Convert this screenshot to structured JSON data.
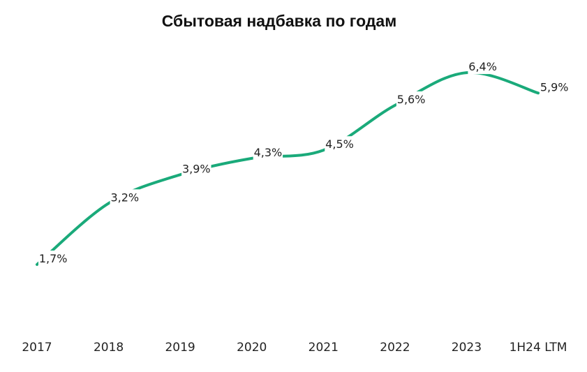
{
  "chart_data": {
    "type": "line",
    "title": "Сбытовая надбавка по годам",
    "categories": [
      "2017",
      "2018",
      "2019",
      "2020",
      "2021",
      "2022",
      "2023",
      "1H24 LTM"
    ],
    "series": [
      {
        "values": [
          1.7,
          3.2,
          3.9,
          4.3,
          4.5,
          5.6,
          6.4,
          5.9
        ]
      }
    ],
    "data_labels": [
      "1,7%",
      "3,2%",
      "3,9%",
      "4,3%",
      "4,5%",
      "5,6%",
      "6,4%",
      "5,9%"
    ],
    "line_color": "#1aaa7a",
    "smooth": true,
    "grid": false,
    "legend": "none",
    "y_axis_visible": false
  }
}
